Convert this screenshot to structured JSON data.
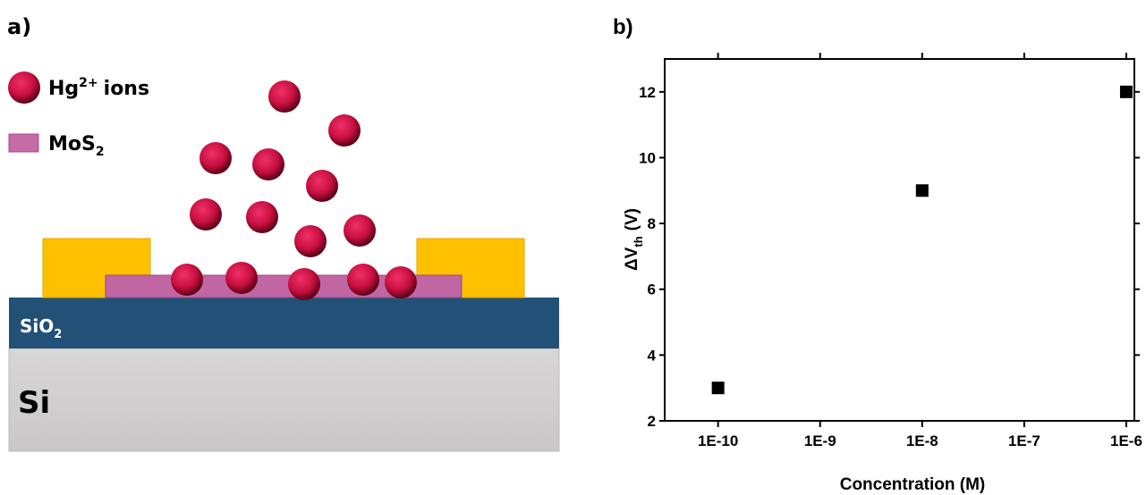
{
  "panel_a": {
    "label": "a)",
    "ion_legend": {
      "base": "Hg",
      "sup": "2+",
      "tail": "ions"
    },
    "mos2_legend": {
      "base": "MoS",
      "sub": "2"
    },
    "oxide": {
      "base": "SiO",
      "sub": "2"
    },
    "substrate": "Si"
  },
  "chart_data": {
    "type": "scatter",
    "panel_label": "b)",
    "x_label": "Concentration (M)",
    "y_label": {
      "base": "ΔV",
      "sub": "th",
      "tail": "(V)"
    },
    "x": [
      1e-10,
      1e-08,
      1e-06
    ],
    "values": [
      3,
      9,
      12
    ],
    "color": "#000000",
    "xscale": "log",
    "xlim": [
      3e-11,
      1.2e-06
    ],
    "xticks": [
      {
        "value": 1e-10,
        "label": "1E-10"
      },
      {
        "value": 1e-09,
        "label": "1E-9"
      },
      {
        "value": 1e-08,
        "label": "1E-8"
      },
      {
        "value": 1e-07,
        "label": "1E-7"
      },
      {
        "value": 1e-06,
        "label": "1E-6"
      }
    ],
    "ylim": [
      2,
      13
    ],
    "yticks": [
      2,
      4,
      6,
      8,
      10,
      12
    ],
    "grid": false
  }
}
